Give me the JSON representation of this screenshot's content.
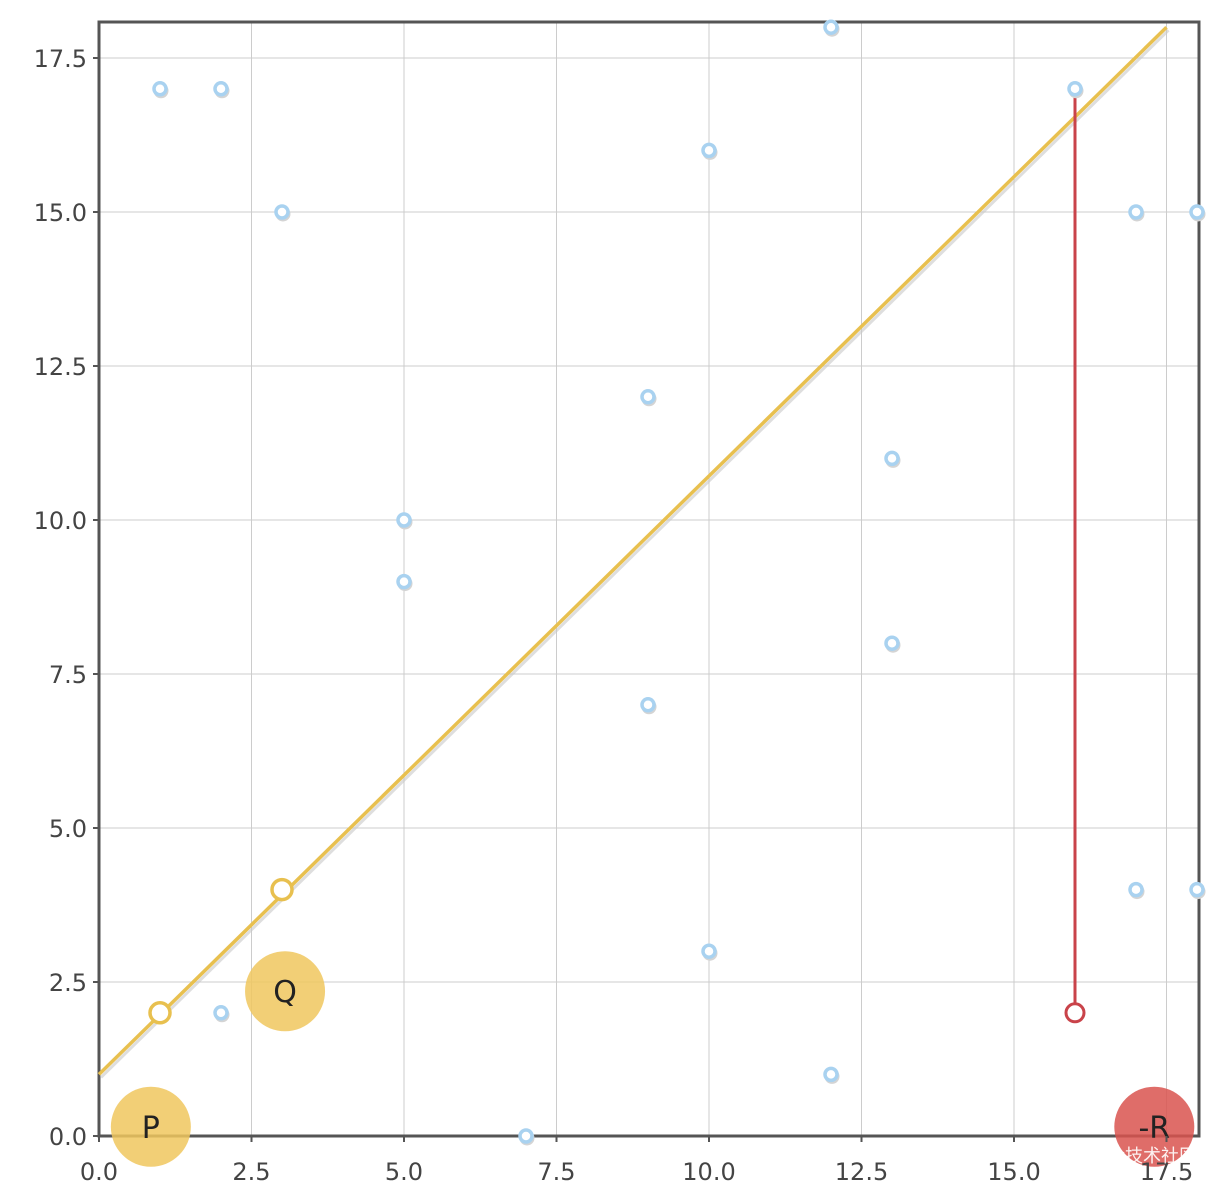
{
  "chart_data": {
    "type": "scatter",
    "xlim": [
      0,
      18
    ],
    "ylim": [
      0,
      18
    ],
    "grid": true,
    "x_ticks": [
      "0.0",
      "2.5",
      "5.0",
      "7.5",
      "10.0",
      "12.5",
      "15.0",
      "17.5"
    ],
    "y_ticks": [
      "0.0",
      "2.5",
      "5.0",
      "7.5",
      "10.0",
      "12.5",
      "15.0",
      "17.5"
    ],
    "tick_values": [
      0,
      2.5,
      5,
      7.5,
      10,
      12.5,
      15,
      17.5
    ],
    "points": [
      {
        "x": 1,
        "y": 17
      },
      {
        "x": 2,
        "y": 17
      },
      {
        "x": 3,
        "y": 15
      },
      {
        "x": 12,
        "y": 18
      },
      {
        "x": 16,
        "y": 17
      },
      {
        "x": 10,
        "y": 16
      },
      {
        "x": 17,
        "y": 15
      },
      {
        "x": 18,
        "y": 15
      },
      {
        "x": 9,
        "y": 12
      },
      {
        "x": 13,
        "y": 11
      },
      {
        "x": 5,
        "y": 10
      },
      {
        "x": 5,
        "y": 9
      },
      {
        "x": 13,
        "y": 8
      },
      {
        "x": 9,
        "y": 7
      },
      {
        "x": 17,
        "y": 4
      },
      {
        "x": 18,
        "y": 4
      },
      {
        "x": 10,
        "y": 3
      },
      {
        "x": 2,
        "y": 2
      },
      {
        "x": 12,
        "y": 1
      },
      {
        "x": 7,
        "y": 0
      }
    ],
    "fit_line": {
      "x1": 0,
      "y1": 1,
      "x2": 17.5,
      "y2": 18
    },
    "line_points": [
      {
        "x": 1,
        "y": 2
      },
      {
        "x": 3,
        "y": 4
      }
    ],
    "residual": {
      "x": 16,
      "y_from": 17,
      "y_to": 2
    },
    "badges": [
      {
        "label": "P",
        "x": 0.85,
        "y": 0.15,
        "color": "#f0c75e"
      },
      {
        "label": "Q",
        "x": 3.05,
        "y": 2.35,
        "color": "#f0c75e"
      },
      {
        "label": "-R",
        "x": 17.3,
        "y": 0.15,
        "color": "#d9534f"
      }
    ],
    "colors": {
      "points": "#a9d2f0",
      "fit_line": "#e8c04f",
      "residual": "#c9434a",
      "grid": "#cccccc",
      "axis": "#555555"
    },
    "watermark": "@稀土掘金技术社区"
  }
}
